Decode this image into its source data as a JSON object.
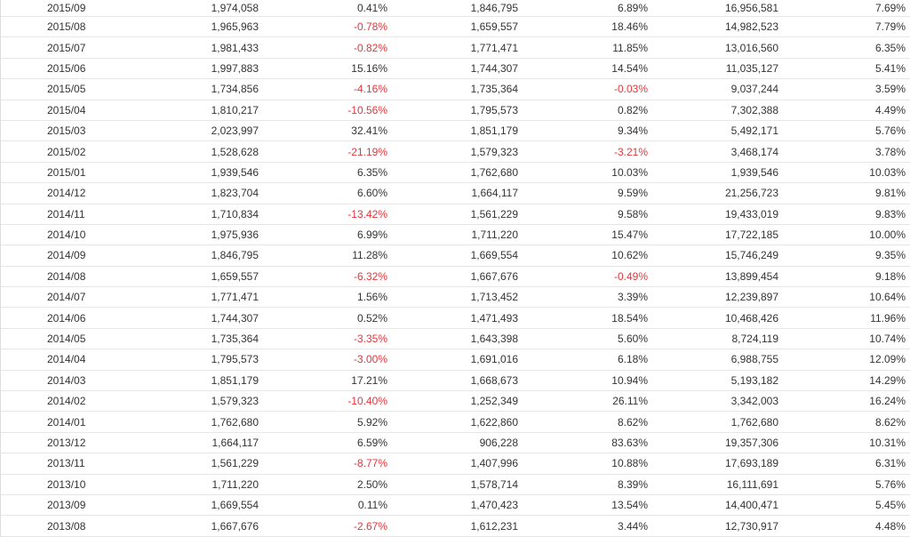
{
  "table": {
    "rows": [
      [
        "2015/09",
        "1,974,058",
        "0.41%",
        "1,846,795",
        "6.89%",
        "16,956,581",
        "7.69%"
      ],
      [
        "2015/08",
        "1,965,963",
        "-0.78%",
        "1,659,557",
        "18.46%",
        "14,982,523",
        "7.79%"
      ],
      [
        "2015/07",
        "1,981,433",
        "-0.82%",
        "1,771,471",
        "11.85%",
        "13,016,560",
        "6.35%"
      ],
      [
        "2015/06",
        "1,997,883",
        "15.16%",
        "1,744,307",
        "14.54%",
        "11,035,127",
        "5.41%"
      ],
      [
        "2015/05",
        "1,734,856",
        "-4.16%",
        "1,735,364",
        "-0.03%",
        "9,037,244",
        "3.59%"
      ],
      [
        "2015/04",
        "1,810,217",
        "-10.56%",
        "1,795,573",
        "0.82%",
        "7,302,388",
        "4.49%"
      ],
      [
        "2015/03",
        "2,023,997",
        "32.41%",
        "1,851,179",
        "9.34%",
        "5,492,171",
        "5.76%"
      ],
      [
        "2015/02",
        "1,528,628",
        "-21.19%",
        "1,579,323",
        "-3.21%",
        "3,468,174",
        "3.78%"
      ],
      [
        "2015/01",
        "1,939,546",
        "6.35%",
        "1,762,680",
        "10.03%",
        "1,939,546",
        "10.03%"
      ],
      [
        "2014/12",
        "1,823,704",
        "6.60%",
        "1,664,117",
        "9.59%",
        "21,256,723",
        "9.81%"
      ],
      [
        "2014/11",
        "1,710,834",
        "-13.42%",
        "1,561,229",
        "9.58%",
        "19,433,019",
        "9.83%"
      ],
      [
        "2014/10",
        "1,975,936",
        "6.99%",
        "1,711,220",
        "15.47%",
        "17,722,185",
        "10.00%"
      ],
      [
        "2014/09",
        "1,846,795",
        "11.28%",
        "1,669,554",
        "10.62%",
        "15,746,249",
        "9.35%"
      ],
      [
        "2014/08",
        "1,659,557",
        "-6.32%",
        "1,667,676",
        "-0.49%",
        "13,899,454",
        "9.18%"
      ],
      [
        "2014/07",
        "1,771,471",
        "1.56%",
        "1,713,452",
        "3.39%",
        "12,239,897",
        "10.64%"
      ],
      [
        "2014/06",
        "1,744,307",
        "0.52%",
        "1,471,493",
        "18.54%",
        "10,468,426",
        "11.96%"
      ],
      [
        "2014/05",
        "1,735,364",
        "-3.35%",
        "1,643,398",
        "5.60%",
        "8,724,119",
        "10.74%"
      ],
      [
        "2014/04",
        "1,795,573",
        "-3.00%",
        "1,691,016",
        "6.18%",
        "6,988,755",
        "12.09%"
      ],
      [
        "2014/03",
        "1,851,179",
        "17.21%",
        "1,668,673",
        "10.94%",
        "5,193,182",
        "14.29%"
      ],
      [
        "2014/02",
        "1,579,323",
        "-10.40%",
        "1,252,349",
        "26.11%",
        "3,342,003",
        "16.24%"
      ],
      [
        "2014/01",
        "1,762,680",
        "5.92%",
        "1,622,860",
        "8.62%",
        "1,762,680",
        "8.62%"
      ],
      [
        "2013/12",
        "1,664,117",
        "6.59%",
        "906,228",
        "83.63%",
        "19,357,306",
        "10.31%"
      ],
      [
        "2013/11",
        "1,561,229",
        "-8.77%",
        "1,407,996",
        "10.88%",
        "17,693,189",
        "6.31%"
      ],
      [
        "2013/10",
        "1,711,220",
        "2.50%",
        "1,578,714",
        "8.39%",
        "16,111,691",
        "5.76%"
      ],
      [
        "2013/09",
        "1,669,554",
        "0.11%",
        "1,470,423",
        "13.54%",
        "14,400,471",
        "5.45%"
      ],
      [
        "2013/08",
        "1,667,676",
        "-2.67%",
        "1,612,231",
        "3.44%",
        "12,730,917",
        "4.48%"
      ]
    ]
  },
  "colors": {
    "text": "#333333",
    "negative": "#e8343a",
    "row_border": "#e6e6e6"
  }
}
